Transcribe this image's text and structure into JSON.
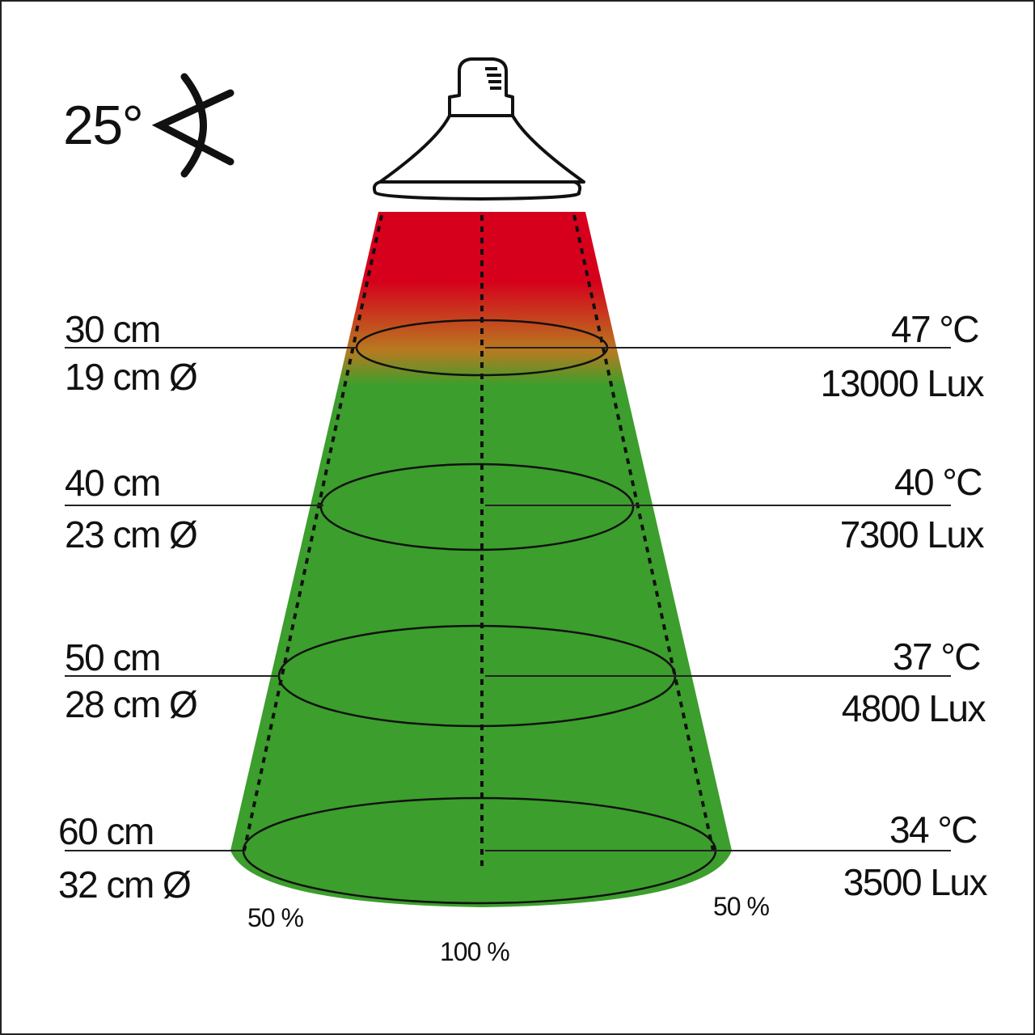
{
  "beam_angle": "25°",
  "colors": {
    "hot": "#d6001c",
    "warm": "#b87a20",
    "cool": "#3c9e2c",
    "outline": "#111111"
  },
  "levels": [
    {
      "distance": "30 cm",
      "diameter": "19 cm Ø",
      "temperature": "47 °C",
      "lux": "13000 Lux"
    },
    {
      "distance": "40 cm",
      "diameter": "23 cm Ø",
      "temperature": "40 °C",
      "lux": "7300 Lux"
    },
    {
      "distance": "50 cm",
      "diameter": "28 cm Ø",
      "temperature": "37 °C",
      "lux": "4800 Lux"
    },
    {
      "distance": "60 cm",
      "diameter": "32 cm Ø",
      "temperature": "34 °C",
      "lux": "3500 Lux"
    }
  ],
  "intensity_labels": {
    "left": "50 %",
    "center": "100 %",
    "right": "50 %"
  }
}
